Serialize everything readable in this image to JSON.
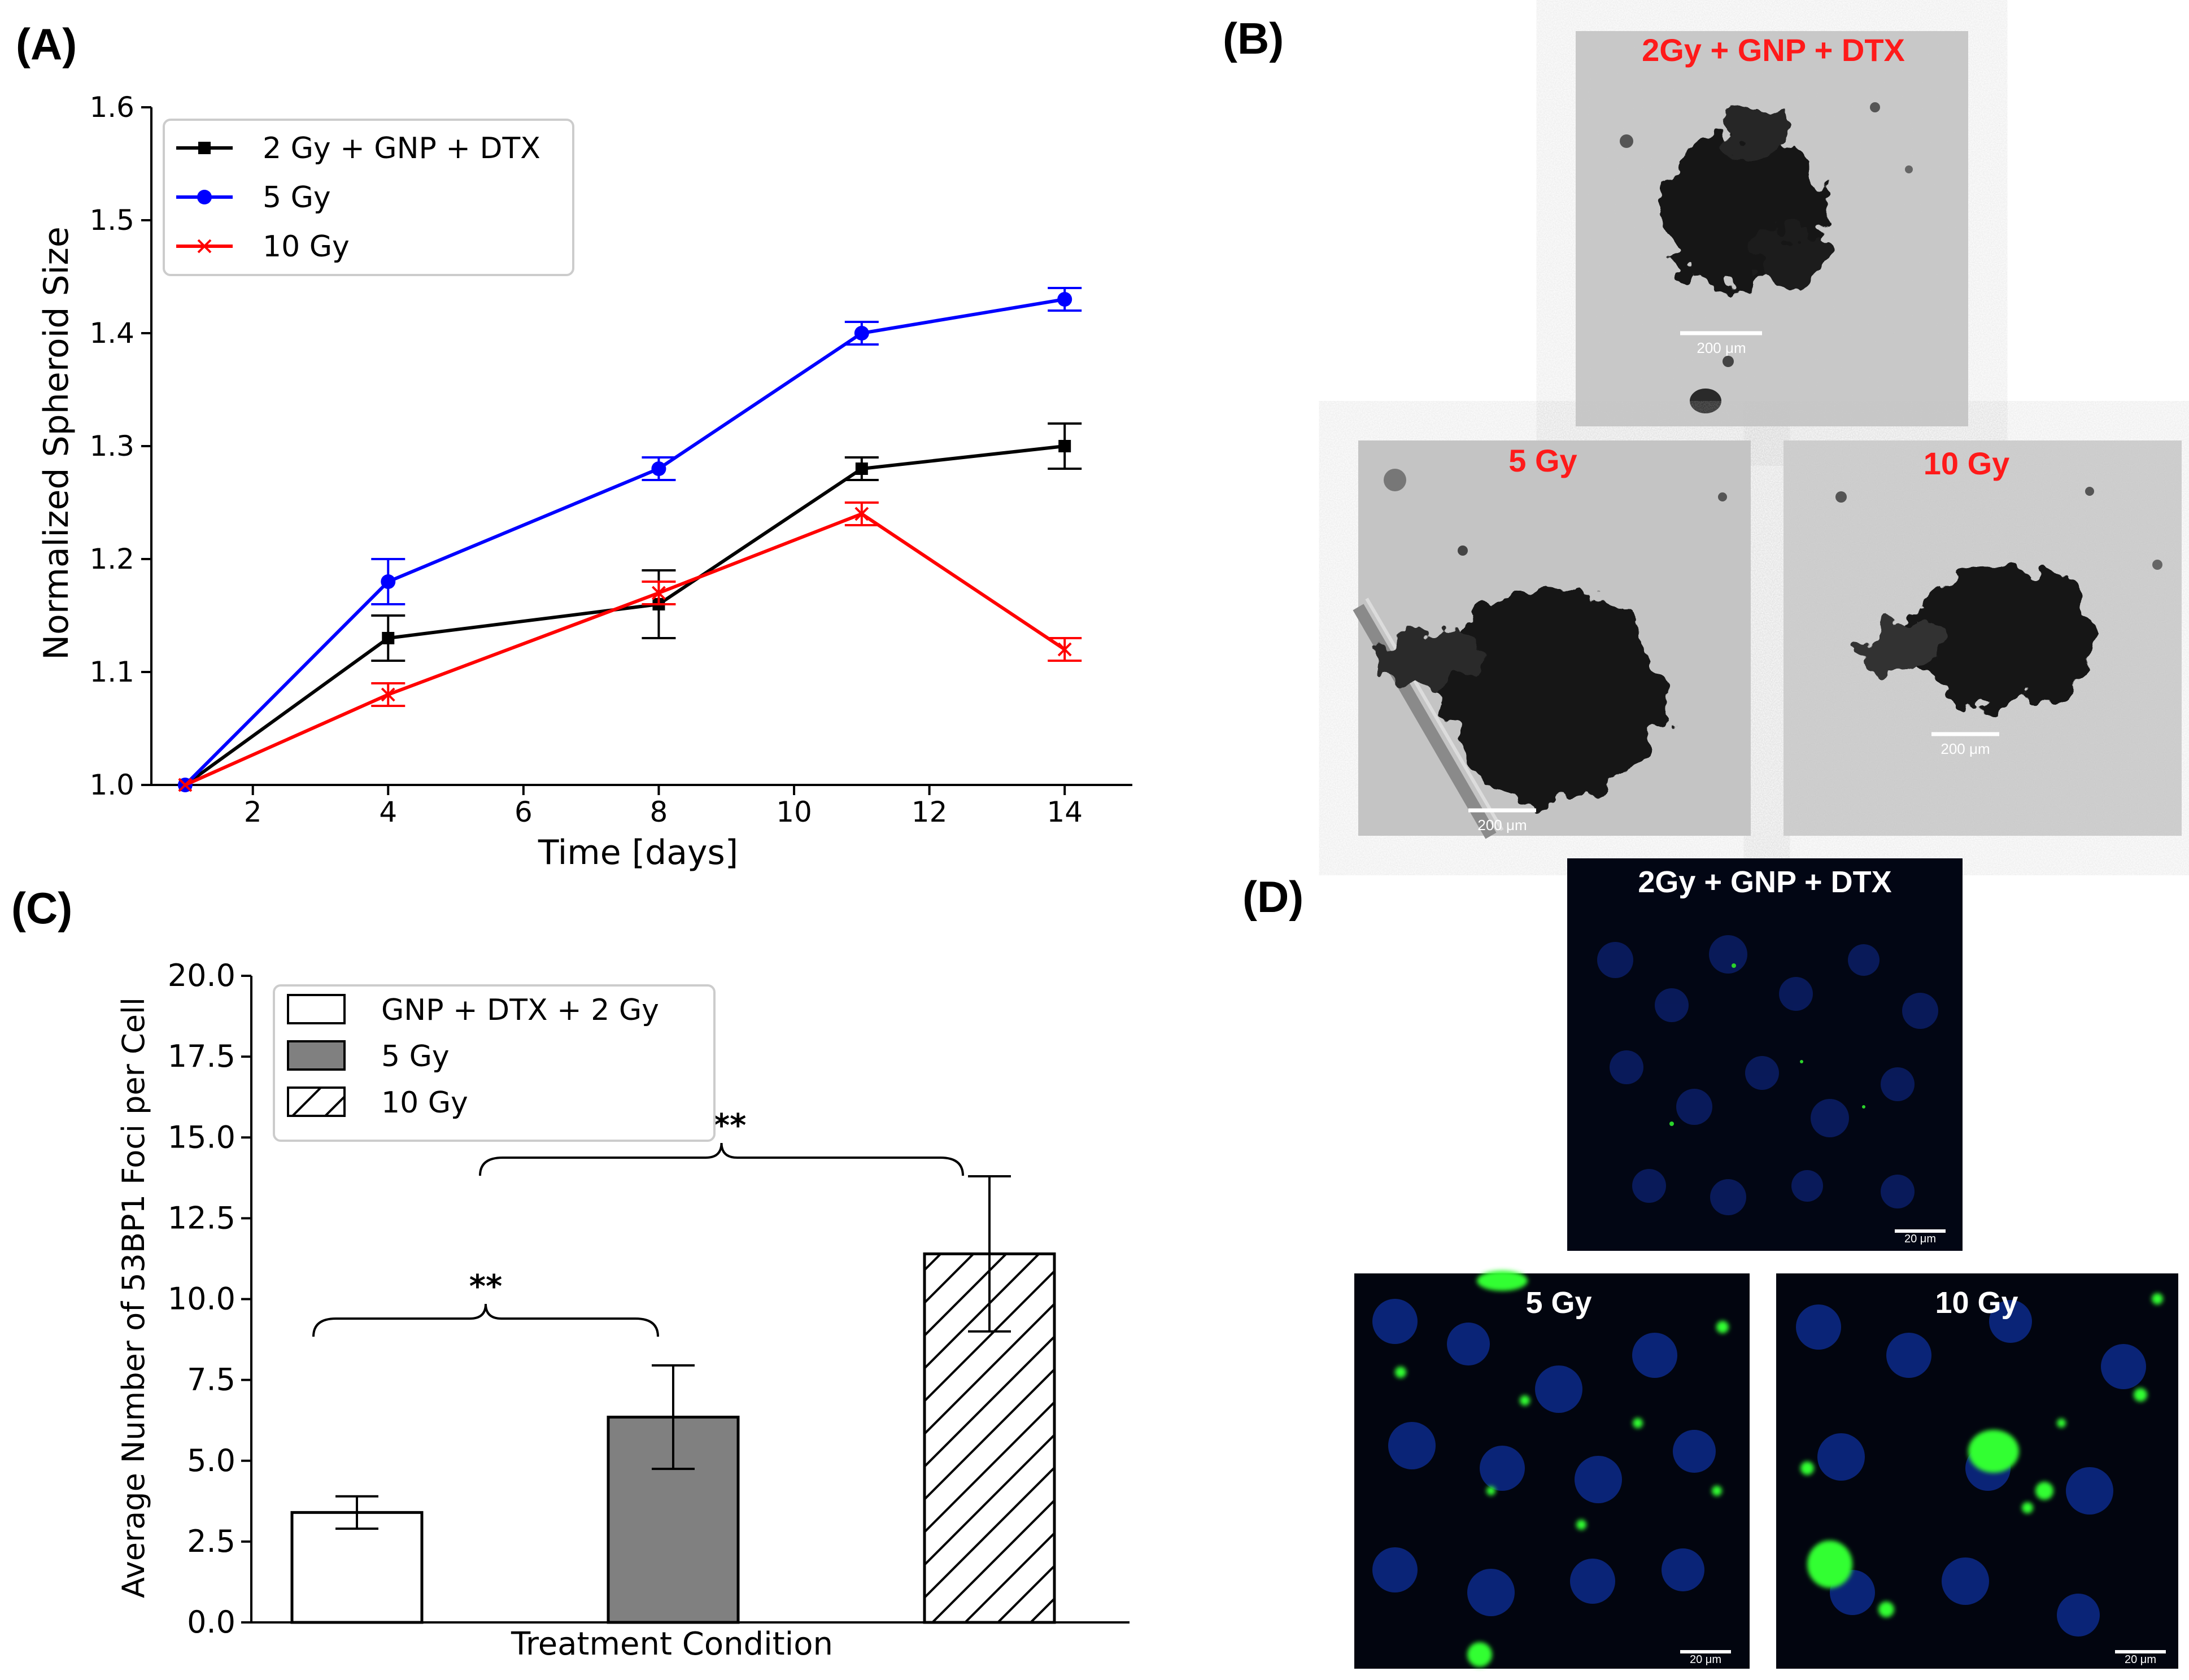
{
  "panels": {
    "a": "(A)",
    "b": "(B)",
    "c": "(C)",
    "d": "(D)"
  },
  "chart_data": [
    {
      "type": "line",
      "xlabel": "Time [days]",
      "ylabel": "Normalized Spheroid Size",
      "xlim": [
        0.5,
        15.0
      ],
      "ylim": [
        1.0,
        1.6
      ],
      "xticks": [
        2,
        4,
        6,
        8,
        10,
        12,
        14
      ],
      "yticks": [
        1.0,
        1.1,
        1.2,
        1.3,
        1.4,
        1.5,
        1.6
      ],
      "legend_position": "top-left",
      "grid": false,
      "series": [
        {
          "name": "2 Gy + GNP + DTX",
          "color": "#000000",
          "marker": "square",
          "x": [
            1,
            4,
            8,
            11,
            14
          ],
          "y": [
            1.0,
            1.13,
            1.16,
            1.28,
            1.3
          ],
          "err": [
            0,
            0.02,
            0.03,
            0.01,
            0.02
          ]
        },
        {
          "name": "5 Gy",
          "color": "#0000ff",
          "marker": "circle",
          "x": [
            1,
            4,
            8,
            11,
            14
          ],
          "y": [
            1.0,
            1.18,
            1.28,
            1.4,
            1.43
          ],
          "err": [
            0,
            0.02,
            0.01,
            0.01,
            0.01
          ]
        },
        {
          "name": "10 Gy",
          "color": "#ff0000",
          "marker": "x",
          "x": [
            1,
            4,
            8,
            11,
            14
          ],
          "y": [
            1.0,
            1.08,
            1.17,
            1.24,
            1.12
          ],
          "err": [
            0,
            0.01,
            0.01,
            0.01,
            0.01
          ]
        }
      ]
    },
    {
      "type": "bar",
      "xlabel": "Treatment Condition",
      "ylabel": "Average Number of 53BP1 Foci per Cell",
      "ylim": [
        0.0,
        20.0
      ],
      "yticks": [
        "0.0",
        "2.5",
        "5.0",
        "7.5",
        "10.0",
        "12.5",
        "15.0",
        "17.5",
        "20.0"
      ],
      "legend_position": "top-left",
      "categories": [
        "GNP + DTX + 2 Gy",
        "5 Gy",
        "10 Gy"
      ],
      "values": [
        3.4,
        6.35,
        11.4
      ],
      "errors": [
        0.5,
        1.6,
        2.4
      ],
      "fills": [
        "white",
        "gray",
        "hatch"
      ],
      "bar_gray": "#808080",
      "significance": [
        {
          "label": "**",
          "from": 0,
          "to": 1
        },
        {
          "label": "***",
          "from": 0.5,
          "to": 2
        }
      ]
    }
  ],
  "micrographs_b": [
    {
      "label": "2Gy + GNP + DTX",
      "scale": "200 μm"
    },
    {
      "label": "5 Gy",
      "scale": "200 μm"
    },
    {
      "label": "10 Gy",
      "scale": "200 μm"
    }
  ],
  "micrographs_d": [
    {
      "label": "2Gy + GNP + DTX",
      "scale": "20 μm"
    },
    {
      "label": "5 Gy",
      "scale": "20 μm"
    },
    {
      "label": "10 Gy",
      "scale": "20 μm"
    }
  ]
}
